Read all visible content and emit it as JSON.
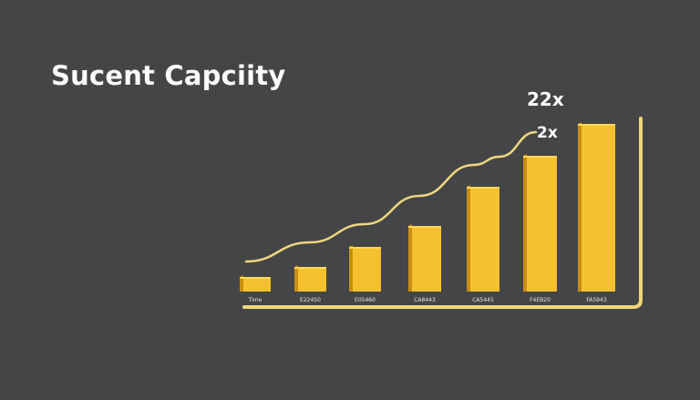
{
  "chart_data": {
    "type": "bar",
    "title": "Sucent Capciity",
    "categories": [
      "Time",
      "E22450",
      "E05460",
      "CA8443",
      "CA5445",
      "F4EB20",
      "FA5943"
    ],
    "values": [
      16,
      27,
      49,
      72,
      115,
      149,
      184
    ],
    "trend_line": [
      33,
      54,
      74,
      105,
      139,
      148,
      175
    ],
    "annotations": [
      "22x",
      "2x"
    ],
    "grid": false,
    "colors": {
      "bar": "#f5c12e",
      "bar_side": "#c98d12",
      "bar_top": "#ffd95a",
      "line": "#efd67e",
      "axis": "#f0d57a",
      "background": "#444546",
      "text": "#ffffff"
    }
  }
}
